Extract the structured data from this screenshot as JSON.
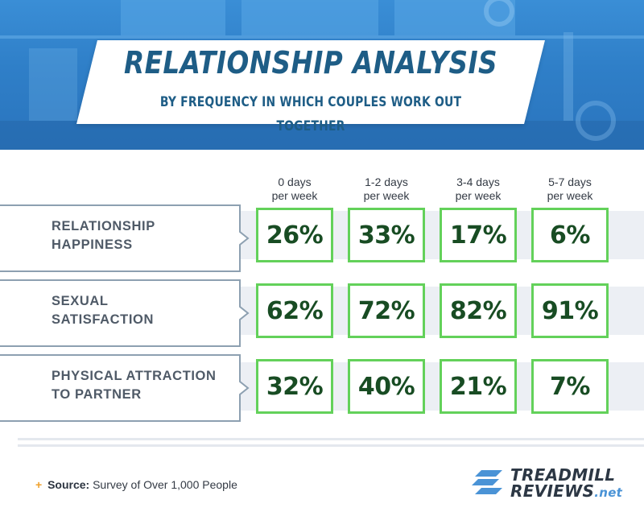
{
  "title": "RELATIONSHIP ANALYSIS",
  "subtitle": "BY FREQUENCY IN WHICH COUPLES WORK OUT TOGETHER",
  "chart_data": {
    "type": "table",
    "columns": [
      {
        "line1": "0 days",
        "line2": "per week"
      },
      {
        "line1": "1-2 days",
        "line2": "per week"
      },
      {
        "line1": "3-4 days",
        "line2": "per week"
      },
      {
        "line1": "5-7 days",
        "line2": "per week"
      }
    ],
    "rows": [
      {
        "line1": "RELATIONSHIP",
        "line2": "HAPPINESS",
        "values": [
          "26%",
          "33%",
          "17%",
          "6%"
        ]
      },
      {
        "line1": "SEXUAL",
        "line2": "SATISFACTION",
        "values": [
          "62%",
          "72%",
          "82%",
          "91%"
        ]
      },
      {
        "line1": "PHYSICAL ATTRACTION",
        "line2": "TO PARTNER",
        "values": [
          "32%",
          "40%",
          "21%",
          "7%"
        ]
      }
    ]
  },
  "source": {
    "plus": "+",
    "label": "Source:",
    "text": "Survey of Over 1,000 People"
  },
  "logo": {
    "line1": "TREADMILL",
    "line2": "REVIEWS",
    "suffix": ".net"
  },
  "colors": {
    "header_blue": "#2f7fc8",
    "title_text": "#1e5d86",
    "cell_border": "#63d15a",
    "cell_text": "#184c23",
    "row_label_text": "#4f5a67",
    "stripe": "#eceff4",
    "accent_orange": "#f0a12c"
  }
}
